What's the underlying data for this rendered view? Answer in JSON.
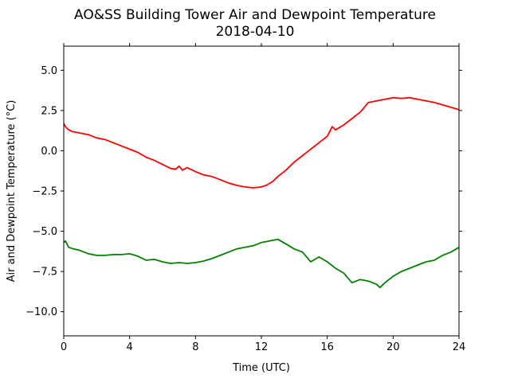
{
  "chart_data": {
    "type": "line",
    "title": "AO&SS Building Tower Air and Dewpoint Temperature",
    "subtitle": "2018-04-10",
    "xlabel": "Time (UTC)",
    "ylabel": "Air and Dewpoint Temperature (°C)",
    "xlim": [
      0,
      24
    ],
    "ylim": [
      -11.5,
      6.5
    ],
    "xticks": [
      0,
      4,
      8,
      12,
      16,
      20,
      24
    ],
    "xtick_labels": [
      "0",
      "4",
      "8",
      "12",
      "16",
      "20",
      "24"
    ],
    "yticks": [
      -10.0,
      -7.5,
      -5.0,
      -2.5,
      0.0,
      2.5,
      5.0
    ],
    "ytick_labels": [
      "−10.0",
      "−7.5",
      "−5.0",
      "−2.5",
      "0.0",
      "2.5",
      "5.0"
    ],
    "grid": false,
    "series": [
      {
        "color": "#ff0000",
        "x": [
          0,
          0.1,
          0.3,
          0.5,
          1,
          1.5,
          2,
          2.5,
          3,
          3.5,
          4,
          4.5,
          5,
          5.5,
          6,
          6.5,
          6.8,
          7,
          7.2,
          7.5,
          8,
          8.5,
          9,
          9.5,
          10,
          10.5,
          11,
          11.5,
          12,
          12.3,
          12.7,
          13,
          13.5,
          14,
          14.5,
          15,
          15.5,
          16,
          16.3,
          16.5,
          17,
          17.5,
          18,
          18.5,
          19,
          19.5,
          20,
          20.5,
          21,
          21.5,
          22,
          22.5,
          23,
          23.5,
          24
        ],
        "y": [
          1.7,
          1.5,
          1.3,
          1.2,
          1.1,
          1.0,
          0.8,
          0.7,
          0.5,
          0.3,
          0.1,
          -0.1,
          -0.4,
          -0.6,
          -0.85,
          -1.1,
          -1.15,
          -0.95,
          -1.2,
          -1.05,
          -1.3,
          -1.5,
          -1.6,
          -1.8,
          -2.0,
          -2.15,
          -2.25,
          -2.3,
          -2.25,
          -2.15,
          -1.9,
          -1.6,
          -1.2,
          -0.7,
          -0.3,
          0.1,
          0.5,
          0.9,
          1.5,
          1.3,
          1.6,
          2.0,
          2.4,
          3.0,
          3.1,
          3.2,
          3.3,
          3.25,
          3.3,
          3.2,
          3.1,
          3.0,
          2.85,
          2.7,
          2.55
        ]
      },
      {
        "color": "#008000",
        "x": [
          0,
          0.1,
          0.3,
          0.6,
          1,
          1.5,
          2,
          2.5,
          3,
          3.5,
          4,
          4.5,
          5,
          5.5,
          6,
          6.5,
          7,
          7.5,
          8,
          8.5,
          9,
          9.5,
          10,
          10.5,
          11,
          11.5,
          12,
          12.5,
          13,
          13.5,
          14,
          14.5,
          15,
          15.5,
          16,
          16.5,
          17,
          17.5,
          18,
          18.5,
          19,
          19.2,
          19.5,
          20,
          20.5,
          21,
          21.5,
          22,
          22.5,
          23,
          23.5,
          24
        ],
        "y": [
          -5.7,
          -5.6,
          -6.0,
          -6.1,
          -6.2,
          -6.4,
          -6.5,
          -6.5,
          -6.45,
          -6.45,
          -6.4,
          -6.55,
          -6.8,
          -6.75,
          -6.9,
          -7.0,
          -6.95,
          -7.0,
          -6.95,
          -6.85,
          -6.7,
          -6.5,
          -6.3,
          -6.1,
          -6.0,
          -5.9,
          -5.7,
          -5.6,
          -5.5,
          -5.8,
          -6.1,
          -6.3,
          -6.9,
          -6.6,
          -6.9,
          -7.3,
          -7.6,
          -8.2,
          -8.0,
          -8.1,
          -8.3,
          -8.5,
          -8.2,
          -7.8,
          -7.5,
          -7.3,
          -7.1,
          -6.9,
          -6.8,
          -6.5,
          -6.3,
          -6.0
        ]
      }
    ]
  }
}
